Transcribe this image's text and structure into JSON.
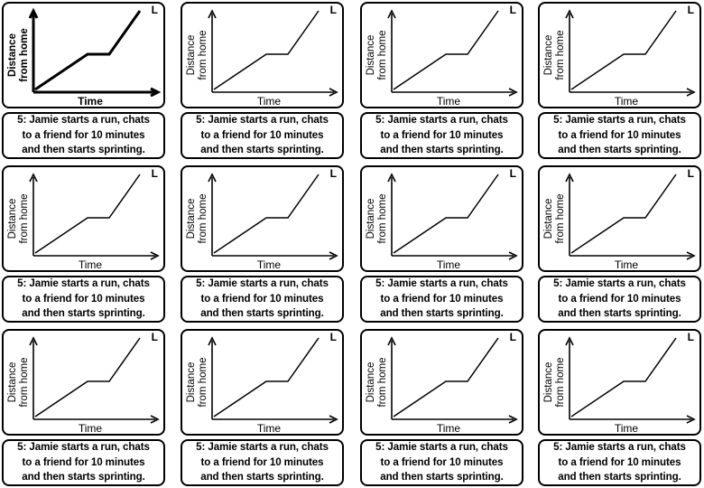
{
  "cards": [
    {
      "y_label_line1": "Distance",
      "y_label_line2": "from home",
      "x_label": "Time",
      "corner_tag": "L",
      "caption": "5: Jamie starts a run, chats to a friend for 10 minutes and then starts sprinting.",
      "caption_lines": [
        "5: Jamie starts a run, chats",
        "to a friend for 10 minutes",
        "and then starts sprinting."
      ]
    },
    {
      "y_label_line1": "Distance",
      "y_label_line2": "from home",
      "x_label": "Time",
      "corner_tag": "L",
      "caption_lines": [
        "5: Jamie starts a run, chats",
        "to a friend for 10 minutes",
        "and then starts sprinting."
      ]
    },
    {
      "y_label_line1": "Distance",
      "y_label_line2": "from home",
      "x_label": "Time",
      "corner_tag": "L",
      "caption_lines": [
        "5: Jamie starts a run, chats",
        "to a friend for 10 minutes",
        "and then starts sprinting."
      ]
    },
    {
      "y_label_line1": "Distance",
      "y_label_line2": "from home",
      "x_label": "Time",
      "corner_tag": "L",
      "caption_lines": [
        "5: Jamie starts a run, chats",
        "to a friend for 10 minutes",
        "and then starts sprinting."
      ]
    },
    {
      "y_label_line1": "Distance",
      "y_label_line2": "from home",
      "x_label": "Time",
      "corner_tag": "L",
      "caption_lines": [
        "5: Jamie starts a run, chats",
        "to a friend for 10 minutes",
        "and then starts sprinting."
      ]
    },
    {
      "y_label_line1": "Distance",
      "y_label_line2": "from home",
      "x_label": "Time",
      "corner_tag": "L",
      "caption_lines": [
        "5: Jamie starts a run, chats",
        "to a friend for 10 minutes",
        "and then starts sprinting."
      ]
    },
    {
      "y_label_line1": "Distance",
      "y_label_line2": "from home",
      "x_label": "Time",
      "corner_tag": "L",
      "caption_lines": [
        "5: Jamie starts a run, chats",
        "to a friend for 10 minutes",
        "and then starts sprinting."
      ]
    },
    {
      "y_label_line1": "Distance",
      "y_label_line2": "from home",
      "x_label": "Time",
      "corner_tag": "L",
      "caption_lines": [
        "5: Jamie starts a run, chats",
        "to a friend for 10 minutes",
        "and then starts sprinting."
      ]
    },
    {
      "y_label_line1": "Distance",
      "y_label_line2": "from home",
      "x_label": "Time",
      "corner_tag": "L",
      "caption_lines": [
        "5: Jamie starts a run, chats",
        "to a friend for 10 minutes",
        "and then starts sprinting."
      ]
    },
    {
      "y_label_line1": "Distance",
      "y_label_line2": "from home",
      "x_label": "Time",
      "corner_tag": "L",
      "caption_lines": [
        "5: Jamie starts a run, chats",
        "to a friend for 10 minutes",
        "and then starts sprinting."
      ]
    },
    {
      "y_label_line1": "Distance",
      "y_label_line2": "from home",
      "x_label": "Time",
      "corner_tag": "L",
      "caption_lines": [
        "5: Jamie starts a run, chats",
        "to a friend for 10 minutes",
        "and then starts sprinting."
      ]
    },
    {
      "y_label_line1": "Distance",
      "y_label_line2": "from home",
      "x_label": "Time",
      "corner_tag": "L",
      "caption_lines": [
        "5: Jamie starts a run, chats",
        "to a friend for 10 minutes",
        "and then starts sprinting."
      ]
    }
  ]
}
